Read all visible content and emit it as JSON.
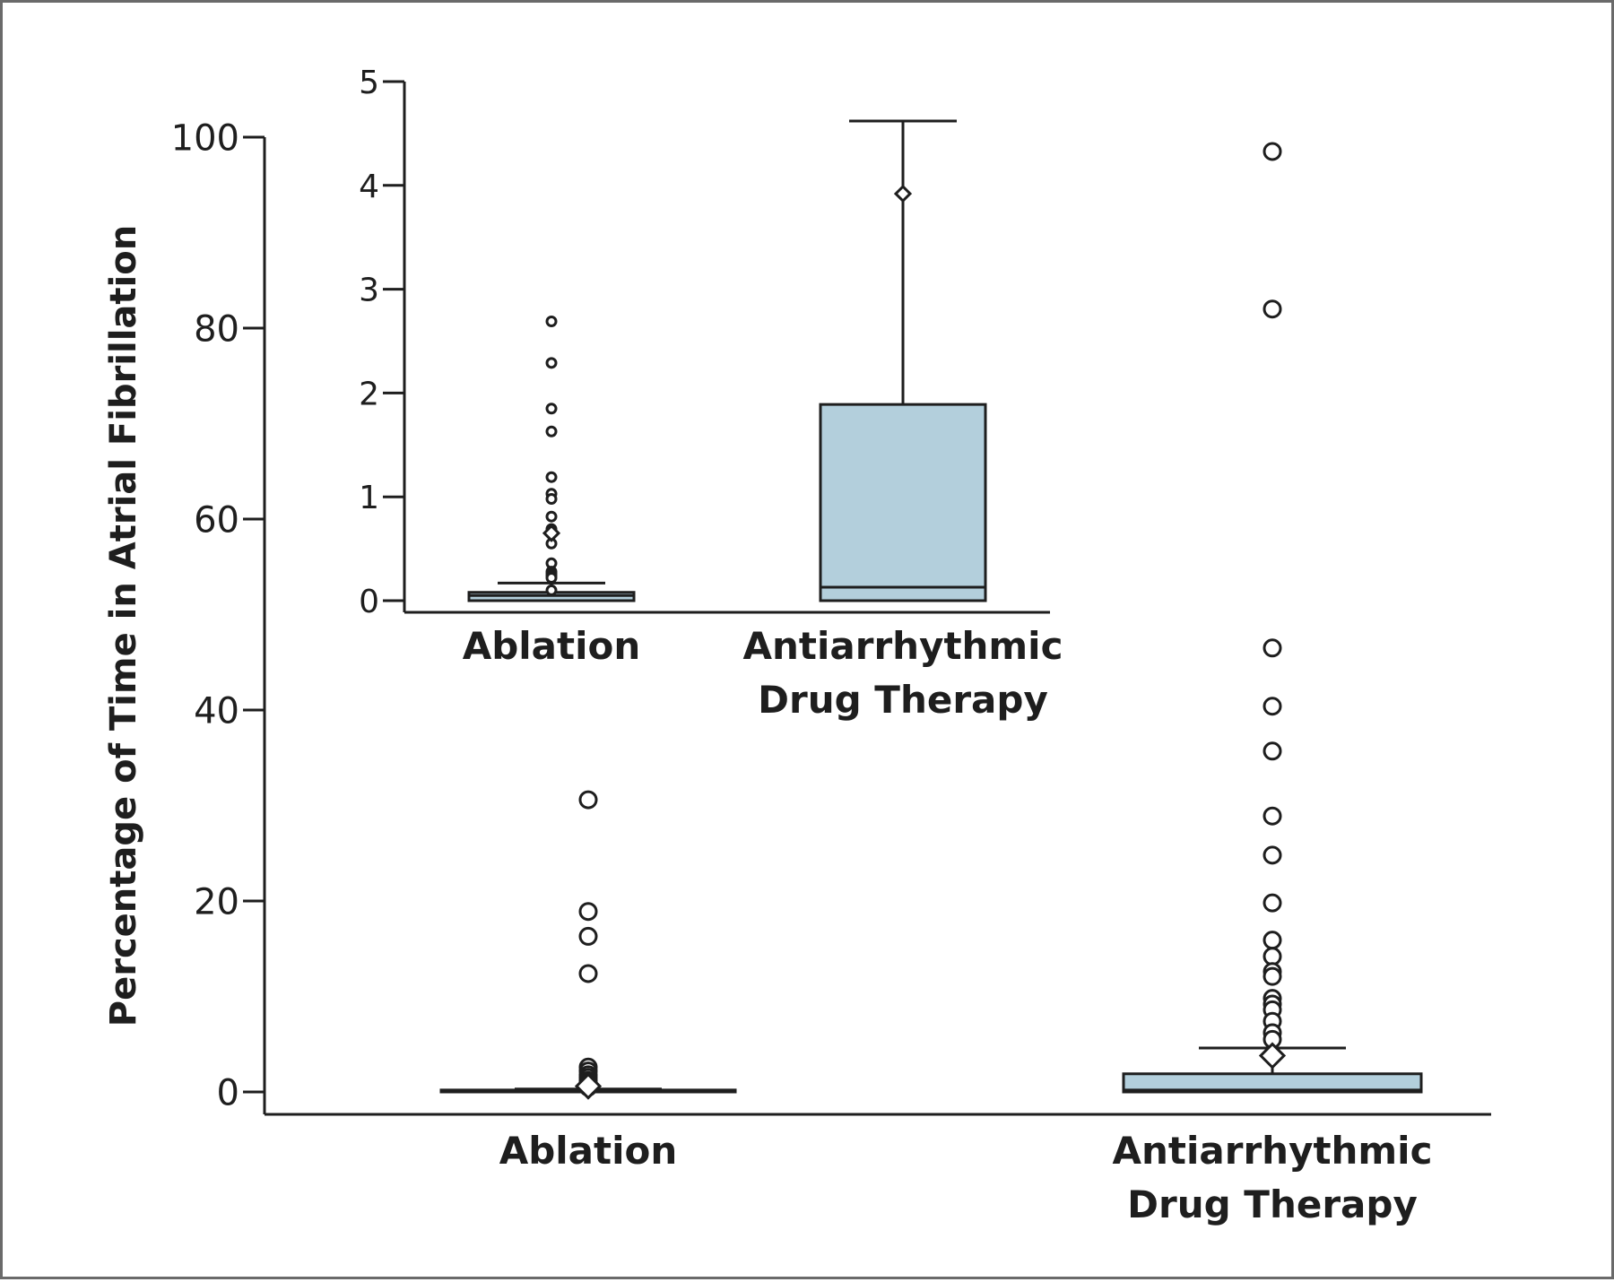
{
  "chart_data": [
    {
      "type": "box",
      "ylabel": "Percentage of Time in Atrial Fibrillation",
      "ylim": [
        0,
        100
      ],
      "yticks": [
        0,
        20,
        40,
        60,
        80,
        100
      ],
      "categories": [
        "Ablation",
        "Antiarrhythmic\nDrug Therapy"
      ],
      "boxes": [
        {
          "name": "Ablation",
          "q1": 0,
          "median": 0.1,
          "q3": 0.2,
          "whisker_low": 0,
          "whisker_high": 0.3,
          "mean": 0.6,
          "outliers": [
            30.6,
            18.9,
            16.3,
            12.4,
            2.6,
            2.2,
            1.8,
            1.5,
            1.2,
            1.0,
            0.8,
            0.5
          ]
        },
        {
          "name": "Antiarrhythmic Drug Therapy",
          "q1": 0,
          "median": 0.2,
          "q3": 1.9,
          "whisker_low": 0,
          "whisker_high": 4.6,
          "mean": 3.8,
          "outliers": [
            98.5,
            82.0,
            46.5,
            40.4,
            35.7,
            28.9,
            24.8,
            19.8,
            15.9,
            14.2,
            12.6,
            12.1,
            9.8,
            9.2,
            8.6,
            7.4,
            6.2,
            5.5
          ]
        }
      ]
    },
    {
      "type": "box",
      "title": "inset",
      "ylim": [
        0,
        5
      ],
      "yticks": [
        0,
        1,
        2,
        3,
        4,
        5
      ],
      "categories": [
        "Ablation",
        "Antiarrhythmic\nDrug Therapy"
      ],
      "boxes": [
        {
          "name": "Ablation",
          "q1": 0,
          "median": 0.05,
          "q3": 0.08,
          "whisker_low": 0,
          "whisker_high": 0.17,
          "mean": 0.65,
          "outliers": [
            2.69,
            2.29,
            1.85,
            1.63,
            1.19,
            1.03,
            0.98,
            0.81,
            0.69,
            0.55,
            0.36,
            0.28,
            0.26,
            0.24,
            0.22,
            0.1
          ]
        },
        {
          "name": "Antiarrhythmic Drug Therapy",
          "q1": 0,
          "median": 0.13,
          "q3": 1.89,
          "whisker_low": 0,
          "whisker_high": 4.62,
          "mean": 3.92,
          "outliers": []
        }
      ]
    }
  ]
}
